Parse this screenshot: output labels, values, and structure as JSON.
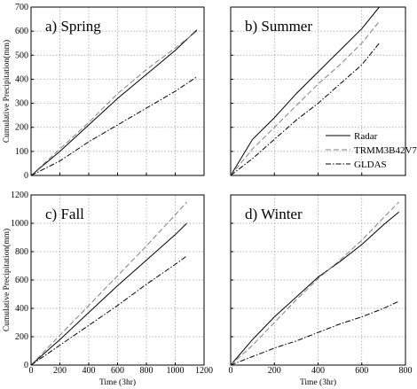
{
  "chart_data": [
    {
      "type": "line",
      "title": "a) Spring",
      "y_label": "Cumulative Precipitation(mm)",
      "x": [
        0,
        200,
        400,
        600,
        800,
        1000,
        1150
      ],
      "series": [
        {
          "name": "Radar",
          "color": "#000000",
          "dash": "solid",
          "values": [
            0,
            100,
            210,
            320,
            420,
            520,
            605
          ]
        },
        {
          "name": "TRMM3B42V7",
          "color": "#808080",
          "dash": "dashed",
          "values": [
            0,
            110,
            220,
            340,
            440,
            530,
            600
          ]
        },
        {
          "name": "GLDAS",
          "color": "#000000",
          "dash": "dashdot",
          "values": [
            0,
            60,
            140,
            210,
            280,
            350,
            410
          ]
        }
      ],
      "xlim": [
        0,
        1200
      ],
      "xticks": [
        0,
        200,
        400,
        600,
        800,
        1000,
        1200
      ],
      "xtick_labels": false,
      "ylim": [
        0,
        700
      ],
      "yticks": [
        0,
        100,
        200,
        300,
        400,
        500,
        600,
        700
      ],
      "ytick_labels": true,
      "grid": true
    },
    {
      "type": "line",
      "title": "b) Summer",
      "x": [
        0,
        100,
        200,
        300,
        400,
        500,
        600,
        680
      ],
      "series": [
        {
          "name": "Radar",
          "color": "#000000",
          "dash": "solid",
          "values": [
            0,
            150,
            240,
            340,
            430,
            520,
            610,
            700
          ]
        },
        {
          "name": "TRMM3B42V7",
          "color": "#808080",
          "dash": "dashed",
          "values": [
            0,
            110,
            200,
            290,
            380,
            460,
            550,
            640
          ]
        },
        {
          "name": "GLDAS",
          "color": "#000000",
          "dash": "dashdot",
          "values": [
            0,
            70,
            150,
            230,
            300,
            380,
            460,
            550
          ]
        }
      ],
      "xlim": [
        0,
        800
      ],
      "xticks": [
        0,
        200,
        400,
        600,
        800
      ],
      "xtick_labels": false,
      "ylim": [
        0,
        700
      ],
      "yticks": [
        0,
        100,
        200,
        300,
        400,
        500,
        600,
        700
      ],
      "ytick_labels": false,
      "grid": true,
      "legend": "center right"
    },
    {
      "type": "line",
      "title": "c) Fall",
      "y_label": "Cumulative Precipitation(mm)",
      "x_label": "Time (3hr)",
      "x": [
        0,
        200,
        400,
        600,
        800,
        1000,
        1080
      ],
      "series": [
        {
          "name": "Radar",
          "color": "#000000",
          "dash": "solid",
          "values": [
            0,
            180,
            370,
            560,
            740,
            920,
            1000
          ]
        },
        {
          "name": "TRMM3B42V7",
          "color": "#808080",
          "dash": "dashed",
          "values": [
            0,
            210,
            420,
            630,
            840,
            1060,
            1150
          ]
        },
        {
          "name": "GLDAS",
          "color": "#000000",
          "dash": "dashdot",
          "values": [
            0,
            140,
            280,
            420,
            570,
            710,
            770
          ]
        }
      ],
      "xlim": [
        0,
        1200
      ],
      "xticks": [
        0,
        200,
        400,
        600,
        800,
        1000,
        1200
      ],
      "xtick_labels": true,
      "ylim": [
        0,
        1200
      ],
      "yticks": [
        0,
        200,
        400,
        600,
        800,
        1000,
        1200
      ],
      "ytick_labels": true,
      "grid": true
    },
    {
      "type": "line",
      "title": "d) Winter",
      "x_label": "Time (3hr)",
      "x": [
        0,
        100,
        200,
        300,
        400,
        500,
        600,
        700,
        770
      ],
      "series": [
        {
          "name": "Radar",
          "color": "#000000",
          "dash": "solid",
          "values": [
            0,
            180,
            340,
            480,
            620,
            730,
            850,
            990,
            1080
          ]
        },
        {
          "name": "TRMM3B42V7",
          "color": "#808080",
          "dash": "dashed",
          "values": [
            0,
            140,
            300,
            460,
            610,
            740,
            880,
            1040,
            1150
          ]
        },
        {
          "name": "GLDAS",
          "color": "#000000",
          "dash": "dashdot",
          "values": [
            0,
            60,
            120,
            170,
            230,
            290,
            340,
            400,
            450
          ]
        }
      ],
      "xlim": [
        0,
        800
      ],
      "xticks": [
        0,
        200,
        400,
        600,
        800
      ],
      "xtick_labels": true,
      "ylim": [
        0,
        1200
      ],
      "yticks": [
        0,
        200,
        400,
        600,
        800,
        1000,
        1200
      ],
      "ytick_labels": false,
      "grid": true
    }
  ]
}
